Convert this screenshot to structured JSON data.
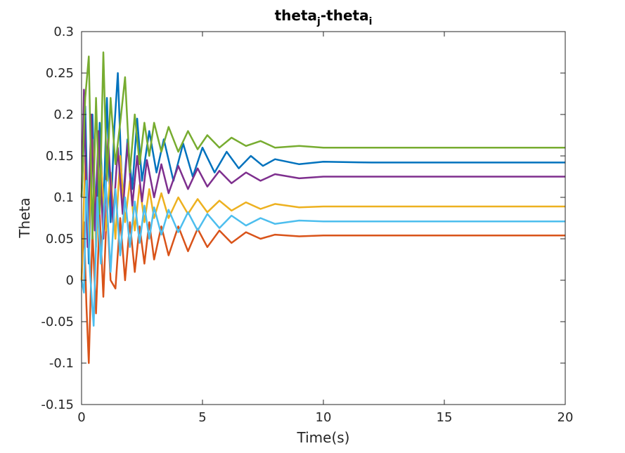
{
  "chart_data": {
    "type": "line",
    "title": "theta",
    "title_sub1": "j",
    "title_mid": "-theta",
    "title_sub2": "i",
    "xlabel": "Time(s)",
    "ylabel": "Theta",
    "xlim": [
      0,
      20
    ],
    "ylim": [
      -0.15,
      0.3
    ],
    "xticks": [
      0,
      5,
      10,
      15,
      20
    ],
    "xtick_labels": [
      "0",
      "5",
      "10",
      "15",
      "20"
    ],
    "yticks": [
      -0.15,
      -0.1,
      -0.05,
      0,
      0.05,
      0.1,
      0.15,
      0.2,
      0.25,
      0.3
    ],
    "ytick_labels": [
      "-0.15",
      "-0.1",
      "-0.05",
      "0",
      "0.05",
      "0.1",
      "0.15",
      "0.2",
      "0.25",
      "0.3"
    ],
    "grid": false,
    "series": [
      {
        "color": "#0072BD",
        "x": [
          0,
          0.15,
          0.3,
          0.45,
          0.6,
          0.75,
          0.9,
          1.05,
          1.2,
          1.35,
          1.5,
          1.7,
          1.9,
          2.1,
          2.3,
          2.5,
          2.8,
          3.1,
          3.4,
          3.8,
          4.2,
          4.6,
          5.0,
          5.5,
          6.0,
          6.5,
          7.0,
          7.5,
          8.0,
          9.0,
          10.0,
          12.0,
          14.0,
          16.0,
          18.0,
          20.0
        ],
        "y": [
          0.1,
          0.21,
          0.02,
          0.2,
          0.05,
          0.19,
          0.08,
          0.22,
          0.07,
          0.18,
          0.25,
          0.09,
          0.17,
          0.11,
          0.195,
          0.12,
          0.18,
          0.13,
          0.17,
          0.12,
          0.165,
          0.125,
          0.16,
          0.13,
          0.155,
          0.135,
          0.15,
          0.138,
          0.146,
          0.14,
          0.143,
          0.142,
          0.142,
          0.142,
          0.142,
          0.142
        ]
      },
      {
        "color": "#D95319",
        "x": [
          0,
          0.1,
          0.2,
          0.3,
          0.45,
          0.6,
          0.75,
          0.9,
          1.05,
          1.2,
          1.4,
          1.6,
          1.8,
          2.0,
          2.2,
          2.4,
          2.6,
          2.8,
          3.0,
          3.3,
          3.6,
          4.0,
          4.4,
          4.8,
          5.2,
          5.7,
          6.2,
          6.8,
          7.4,
          8.0,
          9.0,
          10.0,
          12.0,
          14.0,
          16.0,
          18.0,
          20.0
        ],
        "y": [
          0.0,
          0.07,
          -0.03,
          -0.1,
          0.06,
          -0.04,
          0.08,
          -0.02,
          0.09,
          0.0,
          -0.01,
          0.075,
          0.0,
          0.07,
          0.01,
          0.065,
          0.02,
          0.07,
          0.025,
          0.065,
          0.03,
          0.065,
          0.035,
          0.062,
          0.04,
          0.06,
          0.045,
          0.058,
          0.05,
          0.055,
          0.053,
          0.054,
          0.054,
          0.054,
          0.054,
          0.054,
          0.054
        ]
      },
      {
        "color": "#EDB120",
        "x": [
          0,
          0.15,
          0.3,
          0.45,
          0.6,
          0.8,
          1.0,
          1.2,
          1.4,
          1.6,
          1.8,
          2.0,
          2.2,
          2.4,
          2.6,
          2.8,
          3.0,
          3.3,
          3.6,
          4.0,
          4.4,
          4.8,
          5.2,
          5.7,
          6.2,
          6.8,
          7.4,
          8.0,
          9.0,
          10.0,
          12.0,
          14.0,
          16.0,
          18.0,
          20.0
        ],
        "y": [
          0.0,
          0.15,
          0.05,
          0.17,
          0.04,
          0.14,
          0.06,
          0.13,
          0.05,
          0.15,
          0.07,
          0.12,
          0.06,
          0.115,
          0.07,
          0.11,
          0.075,
          0.105,
          0.075,
          0.1,
          0.08,
          0.098,
          0.082,
          0.096,
          0.084,
          0.094,
          0.086,
          0.092,
          0.088,
          0.089,
          0.089,
          0.089,
          0.089,
          0.089,
          0.089
        ]
      },
      {
        "color": "#7E2F8E",
        "x": [
          0,
          0.1,
          0.25,
          0.4,
          0.55,
          0.7,
          0.9,
          1.1,
          1.3,
          1.5,
          1.7,
          1.9,
          2.1,
          2.3,
          2.5,
          2.7,
          3.0,
          3.3,
          3.6,
          4.0,
          4.4,
          4.8,
          5.2,
          5.7,
          6.2,
          6.8,
          7.4,
          8.0,
          9.0,
          10.0,
          12.0,
          14.0,
          16.0,
          18.0,
          20.0
        ],
        "y": [
          0.1,
          0.23,
          0.04,
          0.2,
          0.06,
          0.18,
          0.05,
          0.17,
          0.07,
          0.16,
          0.08,
          0.165,
          0.09,
          0.15,
          0.095,
          0.145,
          0.1,
          0.14,
          0.105,
          0.138,
          0.11,
          0.135,
          0.113,
          0.132,
          0.117,
          0.13,
          0.12,
          0.128,
          0.123,
          0.125,
          0.125,
          0.125,
          0.125,
          0.125,
          0.125
        ]
      },
      {
        "color": "#77AC30",
        "x": [
          0,
          0.15,
          0.3,
          0.45,
          0.6,
          0.75,
          0.9,
          1.05,
          1.2,
          1.4,
          1.6,
          1.8,
          2.0,
          2.2,
          2.4,
          2.6,
          2.8,
          3.0,
          3.3,
          3.6,
          4.0,
          4.4,
          4.8,
          5.2,
          5.7,
          6.2,
          6.8,
          7.4,
          8.0,
          9.0,
          10.0,
          12.0,
          14.0,
          16.0,
          18.0,
          20.0
        ],
        "y": [
          0.1,
          0.22,
          0.27,
          0.05,
          0.22,
          0.08,
          0.275,
          0.12,
          0.22,
          0.14,
          0.19,
          0.245,
          0.13,
          0.2,
          0.14,
          0.19,
          0.15,
          0.19,
          0.155,
          0.185,
          0.155,
          0.18,
          0.158,
          0.175,
          0.16,
          0.172,
          0.162,
          0.168,
          0.16,
          0.162,
          0.16,
          0.16,
          0.16,
          0.16,
          0.16,
          0.16
        ]
      },
      {
        "color": "#4DBEEE",
        "x": [
          0,
          0.1,
          0.2,
          0.35,
          0.5,
          0.65,
          0.8,
          1.0,
          1.2,
          1.4,
          1.6,
          1.8,
          2.0,
          2.2,
          2.4,
          2.6,
          2.8,
          3.0,
          3.3,
          3.6,
          4.0,
          4.4,
          4.8,
          5.2,
          5.7,
          6.2,
          6.8,
          7.4,
          8.0,
          9.0,
          10.0,
          12.0,
          14.0,
          16.0,
          18.0,
          20.0
        ],
        "y": [
          0.0,
          -0.015,
          0.12,
          0.01,
          -0.055,
          0.1,
          0.02,
          0.12,
          0.01,
          0.11,
          0.03,
          0.1,
          0.04,
          0.095,
          0.045,
          0.09,
          0.05,
          0.088,
          0.055,
          0.085,
          0.058,
          0.082,
          0.06,
          0.08,
          0.063,
          0.078,
          0.066,
          0.075,
          0.068,
          0.072,
          0.071,
          0.071,
          0.071,
          0.071,
          0.071,
          0.071
        ]
      }
    ]
  }
}
